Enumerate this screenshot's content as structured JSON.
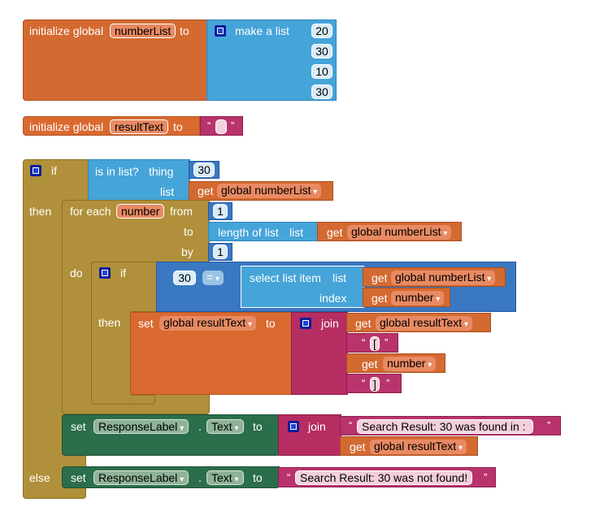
{
  "init_number_list": {
    "label": "initialize global",
    "var_name": "numberList",
    "to": "to",
    "make_list": "make a list",
    "items": [
      "20",
      "30",
      "10",
      "30"
    ]
  },
  "init_result_text": {
    "label": "initialize global",
    "var_name": "resultText",
    "to": "to",
    "open_quote": "“",
    "close_quote": "”"
  },
  "if_block": {
    "if": "if",
    "is_in_list": "is in list?",
    "thing": "thing",
    "thing_value": "30",
    "list": "list",
    "get": "get",
    "get_var": "global numberList",
    "then": "then",
    "else": "else"
  },
  "for_each": {
    "label": "for each",
    "var": "number",
    "from": "from",
    "from_value": "1",
    "to": "to",
    "length_of_list": "length of list",
    "list": "list",
    "get": "get",
    "get_var": "global numberList",
    "by": "by",
    "by_value": "1",
    "do": "do"
  },
  "inner_if": {
    "if": "if",
    "left_value": "30",
    "op": "=",
    "select_item": "select list item",
    "list": "list",
    "get": "get",
    "get_list_var": "global numberList",
    "index": "index",
    "get_index_var": "number",
    "then": "then"
  },
  "set_result": {
    "set": "set",
    "var": "global resultText",
    "to": "to",
    "join": "join",
    "get": "get",
    "get_var1": "global resultText",
    "str1": "[",
    "get_var2": "number",
    "str2": "]",
    "open_quote": "“",
    "close_quote": "”"
  },
  "set_found": {
    "set": "set",
    "component": "ResponseLabel",
    "dot": ".",
    "prop": "Text",
    "to": "to",
    "join": "join",
    "str": "Search Result: 30 was found in : ",
    "get": "get",
    "get_var": "global resultText",
    "open_quote": "“",
    "close_quote": "”"
  },
  "set_not_found": {
    "set": "set",
    "component": "ResponseLabel",
    "dot": ".",
    "prop": "Text",
    "to": "to",
    "str": "Search Result: 30 was not found!",
    "open_quote": "“",
    "close_quote": "”"
  },
  "colors": {
    "variables": "#d36a31",
    "lists": "#45a4d8",
    "math": "#3a78c2",
    "control": "#b0903a",
    "text": "#b62d62",
    "components": "#2b6e4b"
  }
}
